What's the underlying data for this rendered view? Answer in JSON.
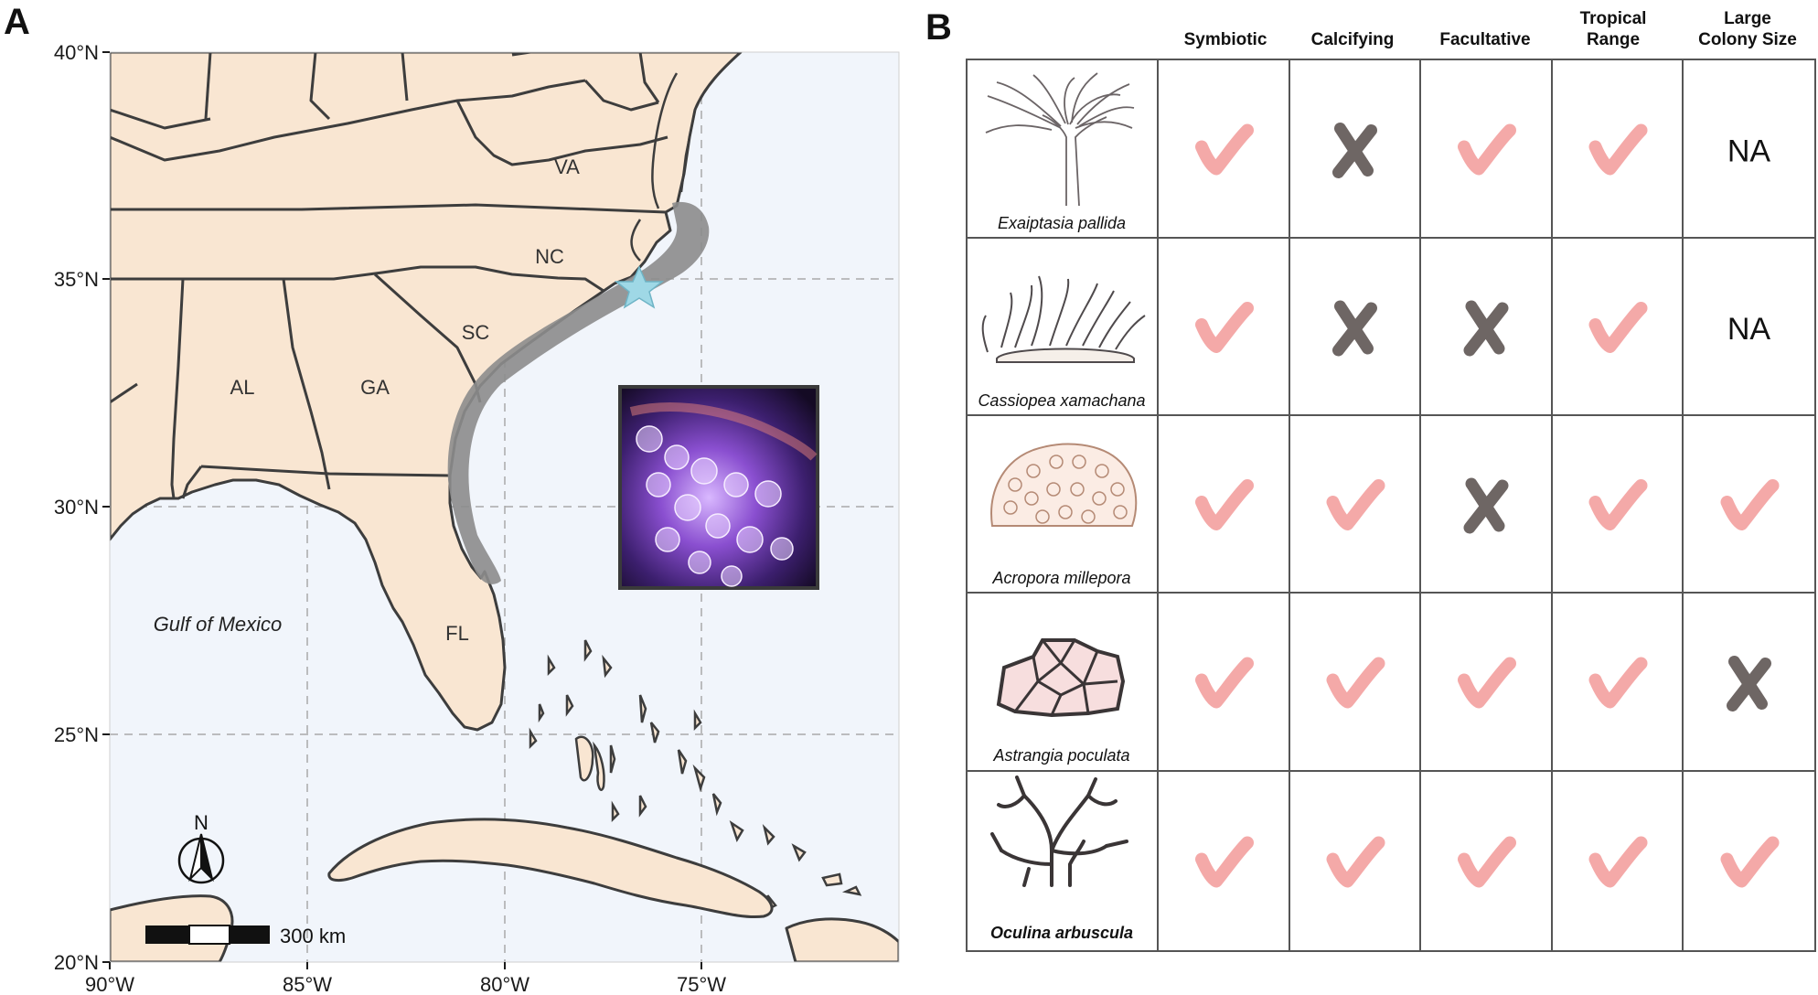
{
  "panels": {
    "a_label": "A",
    "b_label": "B"
  },
  "map": {
    "lat_ticks": [
      "40°N",
      "35°N",
      "30°N",
      "25°N",
      "20°N"
    ],
    "lon_ticks": [
      "90°W",
      "85°W",
      "80°W",
      "75°W"
    ],
    "states": [
      "VA",
      "NC",
      "SC",
      "GA",
      "AL",
      "FL"
    ],
    "water_label": "Gulf of Mexico",
    "north_label": "N",
    "scale_label": "300 km",
    "colors": {
      "land": "#f9e6d2",
      "ocean": "#f1f5fb",
      "range": "#8c8c8c",
      "star": "#9fd8e6",
      "border": "#3d3d3d"
    }
  },
  "table": {
    "columns": [
      [
        "Symbiotic"
      ],
      [
        "Calcifying"
      ],
      [
        "Facultative"
      ],
      [
        "Tropical",
        "Range"
      ],
      [
        "Large",
        "Colony Size"
      ]
    ],
    "rows": [
      {
        "species": "Exaiptasia pallida",
        "bold": false,
        "cells": [
          "check",
          "cross",
          "check",
          "check",
          "NA"
        ]
      },
      {
        "species": "Cassiopea xamachana",
        "bold": false,
        "cells": [
          "check",
          "cross",
          "cross",
          "check",
          "NA"
        ]
      },
      {
        "species": "Acropora millepora",
        "bold": false,
        "cells": [
          "check",
          "check",
          "cross",
          "check",
          "check"
        ]
      },
      {
        "species": "Astrangia poculata",
        "bold": false,
        "cells": [
          "check",
          "check",
          "check",
          "check",
          "cross"
        ]
      },
      {
        "species": "Oculina arbuscula",
        "bold": true,
        "cells": [
          "check",
          "check",
          "check",
          "check",
          "check"
        ]
      }
    ],
    "colors": {
      "check": "#f4a9a8",
      "cross": "#6e6664"
    }
  }
}
